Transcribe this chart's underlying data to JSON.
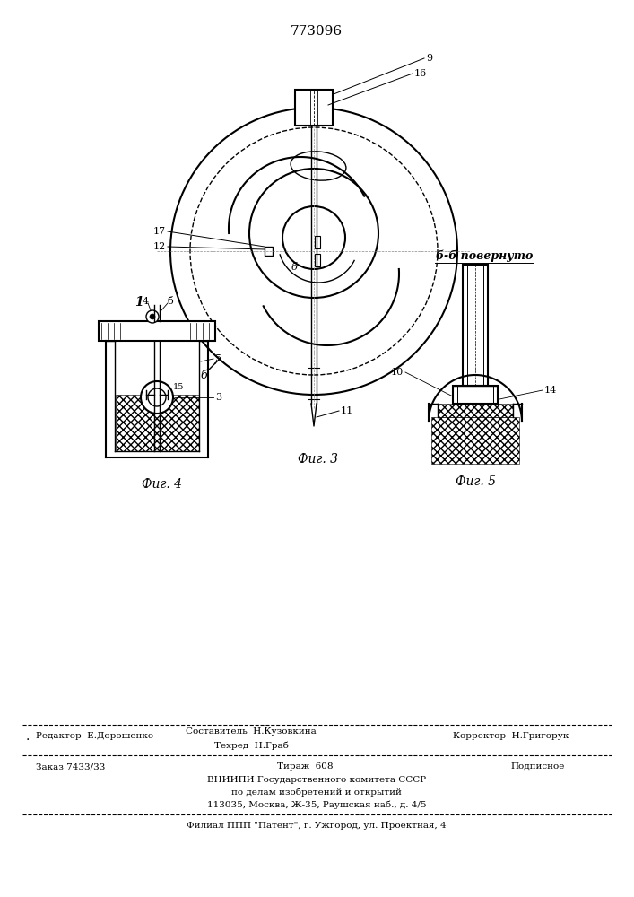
{
  "title": "773096",
  "bg_color": "#ffffff",
  "line_color": "#000000",
  "fig3_caption": "Фиг. 3",
  "fig4_caption": "Фиг. 4",
  "fig5_caption": "Фиг. 5",
  "footer_line1_left": "· Редактор  Е.Дорошенко",
  "footer_line1_mid": "Составитель  Н.Кузовкина\n      Техред  Н.Граб",
  "footer_line1_right": "Корректор  Н.Григорук",
  "footer_line3": "Заказ 7433/33              Тираж  608              Подписное",
  "footer_line4": "ВНИИПИ Государственного комитета СССР",
  "footer_line5": "по делам изобретений и открытий",
  "footer_line6": "113035, Москва, Ж-35, Раушская наб., д. 4/5",
  "footer_line7": "Филиал ППП \"Патент\", г. Ужгород, ул. Проектная, 4",
  "label_9": "9",
  "label_16": "16",
  "label_17": "17",
  "label_12": "12",
  "label_6b": "б",
  "label_11": "11",
  "label_b_cut": "б",
  "label_1": "1",
  "label_4": "4",
  "label_6": "б",
  "label_5": "5",
  "label_15": "15",
  "label_3": "3",
  "label_bb_title": "б-б повернуто",
  "label_10": "10",
  "label_14": "14"
}
